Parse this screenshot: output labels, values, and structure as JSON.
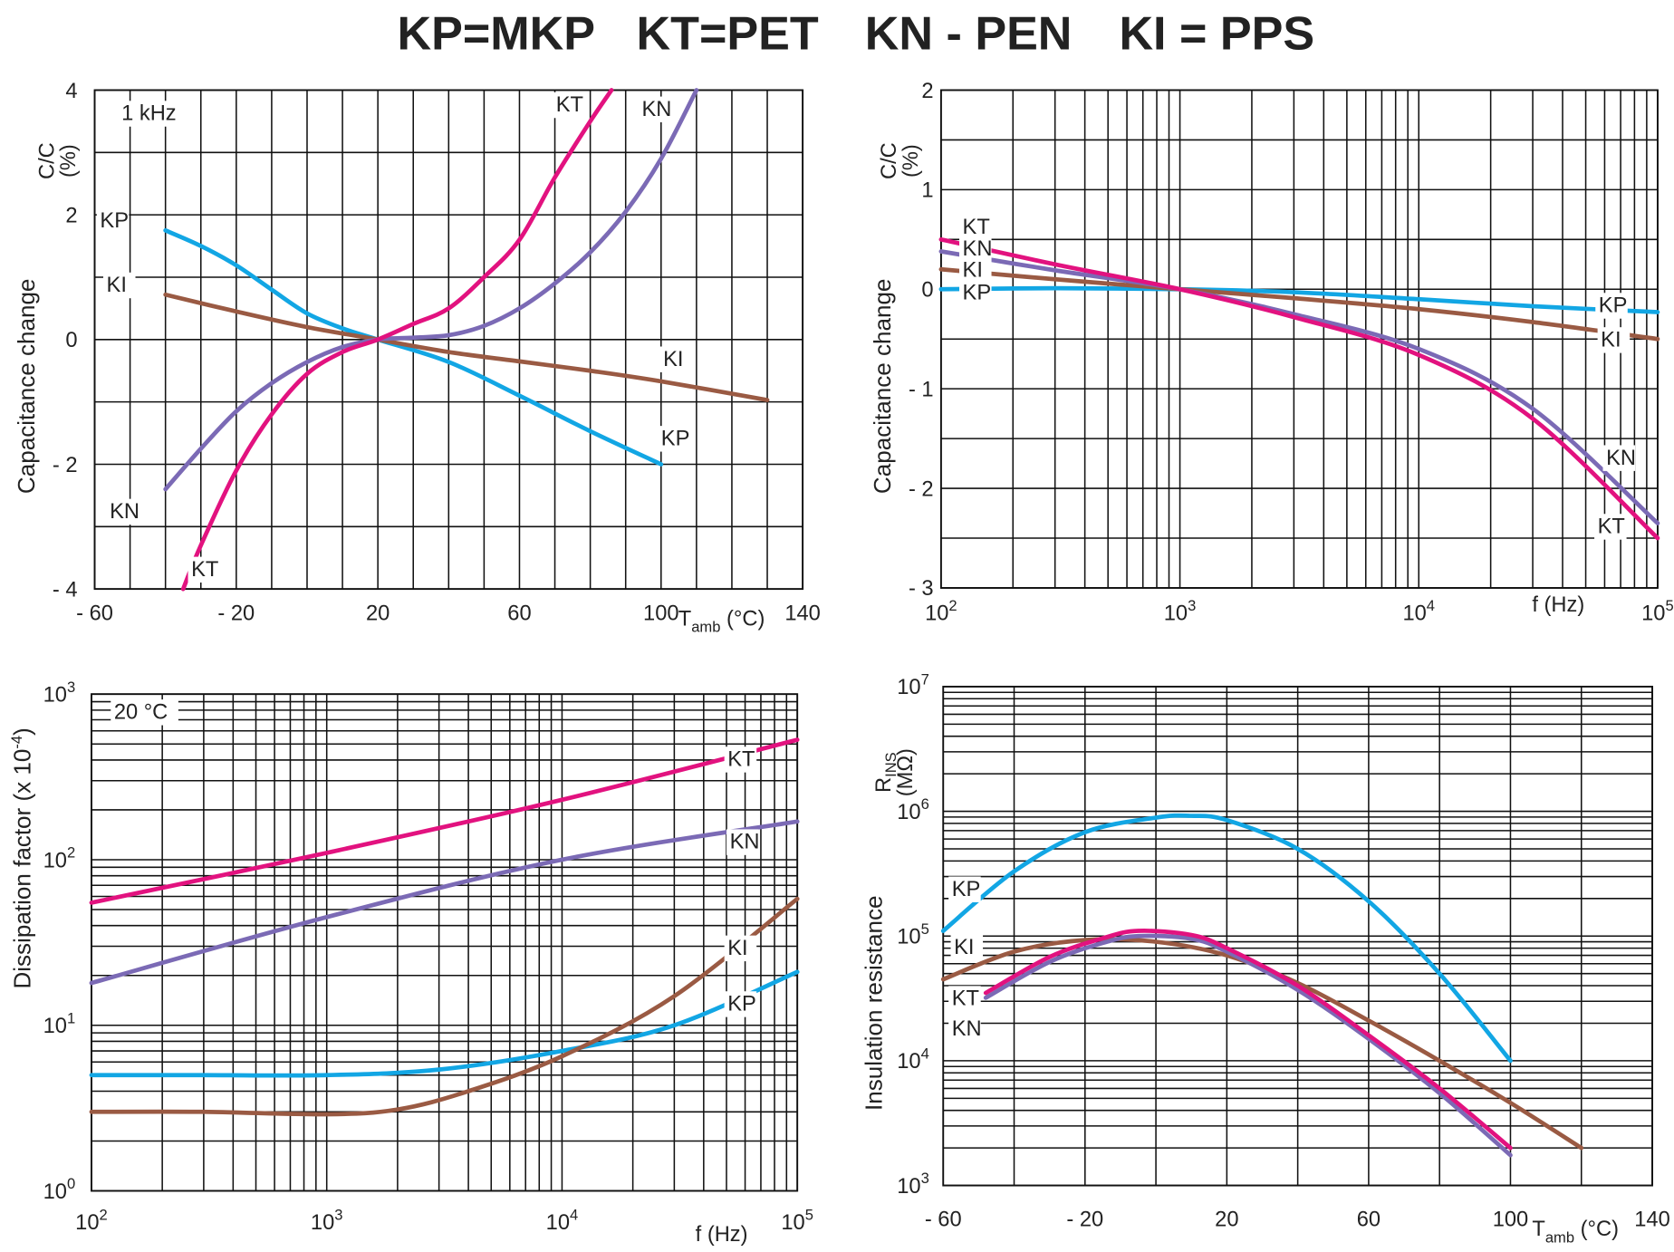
{
  "legend": [
    {
      "text": "KP=MKP",
      "color": "#12a6e4"
    },
    {
      "text": "KT=PET",
      "color": "#e2127f"
    },
    {
      "text": "KN - PEN",
      "color": "#7b6ab5"
    },
    {
      "text": "KI = PPS",
      "color": "#9a5a43"
    }
  ],
  "chart_data": [
    {
      "type": "line",
      "title": "",
      "xlabel": {
        "main": "T",
        "sub": "amb",
        "rest": " (°C)"
      },
      "ylabel": {
        "short": "C/C",
        "unit": "(%)",
        "long": "Capacitance change"
      },
      "xscale": "linear",
      "yscale": "linear",
      "xlim": [
        -60,
        140
      ],
      "ylim": [
        -4,
        4
      ],
      "grid": {
        "xstep": 10,
        "ystep": 1
      },
      "xticks": [
        {
          "v": -60,
          "t": "- 60"
        },
        {
          "v": -20,
          "t": "- 20"
        },
        {
          "v": 20,
          "t": "20"
        },
        {
          "v": 60,
          "t": "60"
        },
        {
          "v": 100,
          "t": "100"
        },
        {
          "v": 140,
          "t": "140"
        }
      ],
      "yticks": [
        {
          "v": 4,
          "t": "4"
        },
        {
          "v": 2,
          "t": "2"
        },
        {
          "v": 0,
          "t": "0"
        },
        {
          "v": -2,
          "t": "- 2"
        },
        {
          "v": -4,
          "t": "- 4"
        }
      ],
      "annotations": [
        "1 kHz",
        "KT",
        "KN",
        "KP",
        "KI",
        "KI",
        "KP",
        "KN",
        "KT"
      ],
      "series": [
        {
          "name": "KP",
          "color": "#12a6e4",
          "x": [
            -40,
            -30,
            -20,
            -10,
            0,
            10,
            20,
            40,
            60,
            80,
            100
          ],
          "y": [
            1.75,
            1.5,
            1.19,
            0.8,
            0.42,
            0.18,
            0,
            -0.36,
            -0.9,
            -1.47,
            -2.0
          ]
        },
        {
          "name": "KI",
          "color": "#9a5a43",
          "x": [
            -40,
            -20,
            0,
            20,
            40,
            60,
            80,
            100,
            130
          ],
          "y": [
            0.72,
            0.45,
            0.2,
            0,
            -0.2,
            -0.35,
            -0.5,
            -0.67,
            -0.97
          ]
        },
        {
          "name": "KN",
          "color": "#7b6ab5",
          "x": [
            -40,
            -30,
            -20,
            -10,
            0,
            10,
            20,
            30,
            40,
            50,
            60,
            70,
            80,
            90,
            100,
            110
          ],
          "y": [
            -2.4,
            -1.75,
            -1.15,
            -0.7,
            -0.36,
            -0.12,
            0,
            0.03,
            0.07,
            0.22,
            0.5,
            0.9,
            1.4,
            2.05,
            2.9,
            4.0
          ]
        },
        {
          "name": "KT",
          "color": "#e2127f",
          "x": [
            -35,
            -30,
            -20,
            -10,
            0,
            10,
            20,
            30,
            40,
            50,
            60,
            70,
            80,
            86
          ],
          "y": [
            -4.0,
            -3.3,
            -2.1,
            -1.2,
            -0.55,
            -0.2,
            0,
            0.25,
            0.5,
            1.0,
            1.6,
            2.6,
            3.5,
            4.0
          ]
        }
      ]
    },
    {
      "type": "line",
      "title": "",
      "xlabel": {
        "main": "f (Hz)"
      },
      "ylabel": {
        "short": "C/C",
        "unit": "(%)",
        "long": "Capacitance change"
      },
      "xscale": "log",
      "yscale": "linear",
      "xlim": [
        100,
        100000
      ],
      "ylim": [
        -3,
        2
      ],
      "grid": {
        "ystep": 0.5
      },
      "xticks": [
        {
          "v": 100,
          "base": "10",
          "exp": "2"
        },
        {
          "v": 1000,
          "base": "10",
          "exp": "3"
        },
        {
          "v": 10000,
          "base": "10",
          "exp": "4"
        },
        {
          "v": 100000,
          "base": "10",
          "exp": "5"
        }
      ],
      "yticks": [
        {
          "v": 2,
          "t": "2"
        },
        {
          "v": 1,
          "t": "1"
        },
        {
          "v": 0,
          "t": "0"
        },
        {
          "v": -1,
          "t": "- 1"
        },
        {
          "v": -2,
          "t": "- 2"
        },
        {
          "v": -3,
          "t": "- 3"
        }
      ],
      "annotations": [
        "KT",
        "KN",
        "KI",
        "KP",
        "KP",
        "KI",
        "KN",
        "KT"
      ],
      "series": [
        {
          "name": "KP",
          "color": "#12a6e4",
          "x": [
            100,
            300,
            1000,
            3000,
            10000,
            30000,
            100000
          ],
          "y": [
            0,
            0.01,
            0,
            -0.03,
            -0.1,
            -0.17,
            -0.23
          ]
        },
        {
          "name": "KI",
          "color": "#9a5a43",
          "x": [
            100,
            300,
            1000,
            3000,
            10000,
            30000,
            100000
          ],
          "y": [
            0.2,
            0.1,
            0,
            -0.09,
            -0.2,
            -0.33,
            -0.5
          ]
        },
        {
          "name": "KN",
          "color": "#7b6ab5",
          "x": [
            100,
            300,
            1000,
            3000,
            10000,
            30000,
            100000
          ],
          "y": [
            0.38,
            0.19,
            0,
            -0.25,
            -0.6,
            -1.2,
            -2.35
          ]
        },
        {
          "name": "KT",
          "color": "#e2127f",
          "x": [
            100,
            300,
            1000,
            3000,
            10000,
            30000,
            100000
          ],
          "y": [
            0.5,
            0.25,
            0,
            -0.28,
            -0.66,
            -1.3,
            -2.5
          ]
        }
      ]
    },
    {
      "type": "line",
      "title": "",
      "xlabel": {
        "main": "f (Hz)"
      },
      "ylabel": {
        "long": "Dissipation factor (x 10",
        "exp": "-4",
        "close": ")"
      },
      "xscale": "log",
      "yscale": "log",
      "xlim": [
        100,
        100000
      ],
      "ylim": [
        1,
        1000
      ],
      "xticks": [
        {
          "v": 100,
          "base": "10",
          "exp": "2"
        },
        {
          "v": 1000,
          "base": "10",
          "exp": "3"
        },
        {
          "v": 10000,
          "base": "10",
          "exp": "4"
        },
        {
          "v": 100000,
          "base": "10",
          "exp": "5"
        }
      ],
      "yticks": [
        {
          "v": 1000,
          "base": "10",
          "exp": "3"
        },
        {
          "v": 100,
          "base": "10",
          "exp": "2"
        },
        {
          "v": 10,
          "base": "10",
          "exp": "1"
        },
        {
          "v": 1,
          "base": "10",
          "exp": "0"
        }
      ],
      "annotations": [
        "20 °C",
        "KT",
        "KN",
        "KI",
        "KP"
      ],
      "series": [
        {
          "name": "KT",
          "color": "#e2127f",
          "x": [
            100,
            1000,
            10000,
            100000
          ],
          "y": [
            55,
            110,
            230,
            530
          ]
        },
        {
          "name": "KN",
          "color": "#7b6ab5",
          "x": [
            100,
            1000,
            10000,
            100000
          ],
          "y": [
            18,
            45,
            100,
            170
          ]
        },
        {
          "name": "KP",
          "color": "#12a6e4",
          "x": [
            100,
            300,
            1000,
            3000,
            10000,
            30000,
            100000
          ],
          "y": [
            5,
            5,
            5,
            5.4,
            7,
            10,
            21
          ]
        },
        {
          "name": "KI",
          "color": "#9a5a43",
          "x": [
            100,
            300,
            1000,
            2000,
            4000,
            10000,
            30000,
            100000
          ],
          "y": [
            3,
            3,
            2.9,
            3.1,
            4,
            6.5,
            15,
            58
          ]
        }
      ]
    },
    {
      "type": "line",
      "title": "",
      "xlabel": {
        "main": "T",
        "sub": "amb",
        "rest": " (°C)"
      },
      "ylabel": {
        "short": "R",
        "sub": "INS",
        "unit": "(MΩ)",
        "long": "Insulation resistance"
      },
      "xscale": "linear",
      "yscale": "log",
      "xlim": [
        -60,
        140
      ],
      "ylim": [
        1000,
        10000000
      ],
      "grid": {
        "xstep": 20
      },
      "xticks": [
        {
          "v": -60,
          "t": "- 60"
        },
        {
          "v": -20,
          "t": "- 20"
        },
        {
          "v": 20,
          "t": "20"
        },
        {
          "v": 60,
          "t": "60"
        },
        {
          "v": 100,
          "t": "100"
        },
        {
          "v": 140,
          "t": "140"
        }
      ],
      "yticks": [
        {
          "v": 10000000,
          "base": "10",
          "exp": "7"
        },
        {
          "v": 1000000,
          "base": "10",
          "exp": "6"
        },
        {
          "v": 100000,
          "base": "10",
          "exp": "5"
        },
        {
          "v": 10000,
          "base": "10",
          "exp": "4"
        },
        {
          "v": 1000,
          "base": "10",
          "exp": "3"
        }
      ],
      "annotations": [
        "KP",
        "KI",
        "KT",
        "KN"
      ],
      "series": [
        {
          "name": "KP",
          "color": "#12a6e4",
          "x": [
            -60,
            -40,
            -20,
            0,
            10,
            20,
            40,
            60,
            80,
            100
          ],
          "y": [
            110000,
            330000,
            680000,
            890000,
            920000,
            850000,
            500000,
            190000,
            50000,
            10000
          ]
        },
        {
          "name": "KI",
          "color": "#9a5a43",
          "x": [
            -60,
            -40,
            -20,
            0,
            20,
            40,
            60,
            80,
            100,
            120
          ],
          "y": [
            45000,
            75000,
            93000,
            90000,
            70000,
            42000,
            21000,
            10000,
            4600,
            2000
          ]
        },
        {
          "name": "KN",
          "color": "#7b6ab5",
          "x": [
            -48,
            -30,
            -15,
            -5,
            10,
            20,
            40,
            60,
            80,
            100
          ],
          "y": [
            32000,
            62000,
            88000,
            100000,
            95000,
            75000,
            37000,
            15000,
            5500,
            1750
          ]
        },
        {
          "name": "KT",
          "color": "#e2127f",
          "x": [
            -48,
            -30,
            -15,
            -5,
            10,
            20,
            40,
            60,
            80,
            100
          ],
          "y": [
            35000,
            68000,
            96000,
            110000,
            102000,
            80000,
            40000,
            16000,
            6000,
            2000
          ]
        }
      ]
    }
  ]
}
